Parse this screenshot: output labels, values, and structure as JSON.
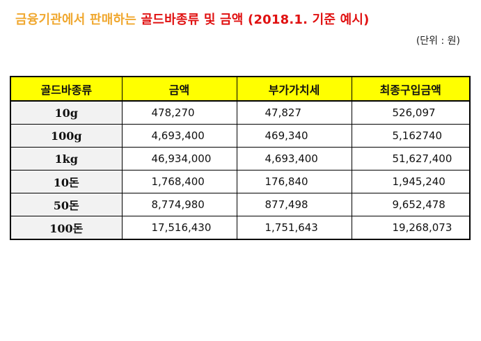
{
  "title": {
    "part1": "금융기관에서 판매하는 ",
    "part2": "골드바종류 및 금액 (2018.1. 기준 예시)"
  },
  "unit": "(단위 : 원)",
  "colors": {
    "title_part1": "#f0a830",
    "title_part2": "#e01010",
    "header_bg": "#ffff00",
    "kind_bg": "#f2f2f2"
  },
  "table": {
    "headers": [
      "골드바종류",
      "금액",
      "부가가치세",
      "최종구입금액"
    ],
    "rows": [
      {
        "kind": "10g",
        "amount": "478,270",
        "vat": "47,827",
        "total": "526,097"
      },
      {
        "kind": "100g",
        "amount": "4,693,400",
        "vat": "469,340",
        "total": "5,162740"
      },
      {
        "kind": "1kg",
        "amount": "46,934,000",
        "vat": "4,693,400",
        "total": "51,627,400"
      },
      {
        "kind": "10돈",
        "amount": "1,768,400",
        "vat": "176,840",
        "total": "1,945,240"
      },
      {
        "kind": "50돈",
        "amount": "8,774,980",
        "vat": "877,498",
        "total": "9,652,478"
      },
      {
        "kind": "100돈",
        "amount": "17,516,430",
        "vat": "1,751,643",
        "total": "19,268,073"
      }
    ]
  }
}
